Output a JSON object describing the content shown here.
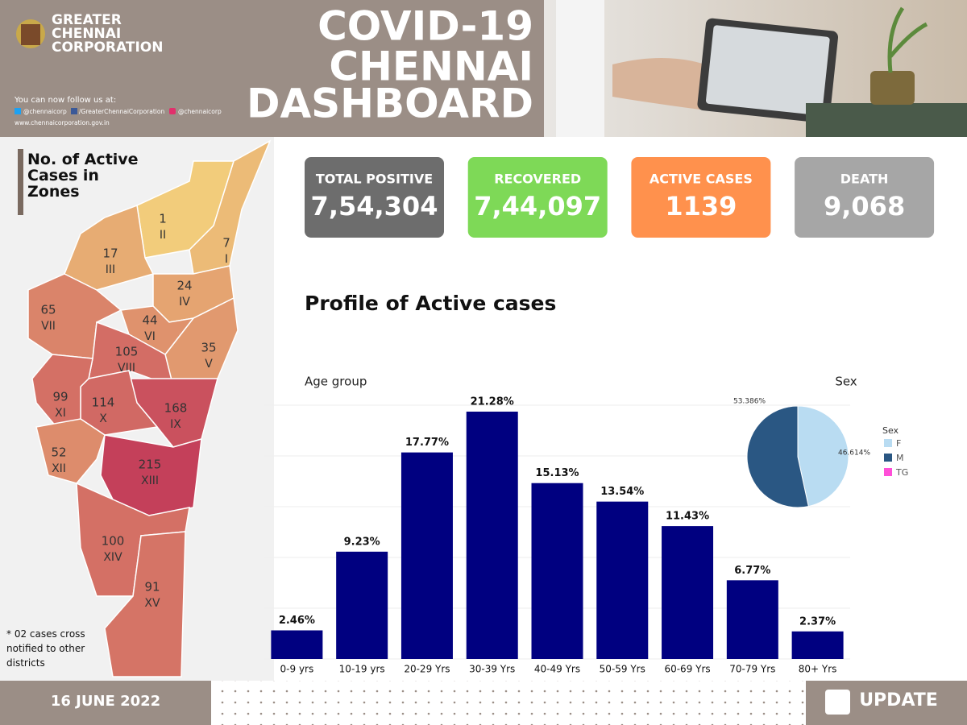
{
  "header": {
    "org": [
      "GREATER",
      "CHENNAI",
      "CORPORATION"
    ],
    "follow": "You can now follow us at:",
    "social": [
      "@chennaicorp",
      "/GreaterChennaiCorporation",
      "@chennaicorp"
    ],
    "website": "www.chennaicorporation.gov.in",
    "title": [
      "COVID-19",
      "CHENNAI",
      "DASHBOARD"
    ]
  },
  "stats": [
    {
      "label": "TOTAL POSITIVE",
      "value": "7,54,304"
    },
    {
      "label": "RECOVERED",
      "value": "7,44,097"
    },
    {
      "label": "ACTIVE CASES",
      "value": "1139"
    },
    {
      "label": "DEATH",
      "value": "9,068"
    }
  ],
  "map": {
    "title": "No. of Active Cases in Zones",
    "note": "* 02  cases cross notified to other districts",
    "zones": [
      {
        "value": 7,
        "numeral": "I"
      },
      {
        "value": 1,
        "numeral": "II"
      },
      {
        "value": 17,
        "numeral": "III"
      },
      {
        "value": 24,
        "numeral": "IV"
      },
      {
        "value": 35,
        "numeral": "V"
      },
      {
        "value": 44,
        "numeral": "VI"
      },
      {
        "value": 65,
        "numeral": "VII"
      },
      {
        "value": 105,
        "numeral": "VIII"
      },
      {
        "value": 168,
        "numeral": "IX"
      },
      {
        "value": 114,
        "numeral": "X"
      },
      {
        "value": 99,
        "numeral": "XI"
      },
      {
        "value": 52,
        "numeral": "XII"
      },
      {
        "value": 215,
        "numeral": "XIII"
      },
      {
        "value": 100,
        "numeral": "XIV"
      },
      {
        "value": 91,
        "numeral": "XV"
      }
    ]
  },
  "section_title": "Profile of Active cases",
  "chart_data": [
    {
      "type": "bar",
      "title": "Age group",
      "color": "#000080",
      "categories": [
        "0-9 yrs",
        "10-19 yrs",
        "20-29 Yrs",
        "30-39 Yrs",
        "40-49 Yrs",
        "50-59 Yrs",
        "60-69 Yrs",
        "70-79 Yrs",
        "80+ Yrs"
      ],
      "values": [
        2.46,
        9.23,
        17.77,
        21.28,
        15.13,
        13.54,
        11.43,
        6.77,
        2.37
      ],
      "value_labels": [
        "2.46%",
        "9.23%",
        "17.77%",
        "21.28%",
        "15.13%",
        "13.54%",
        "11.43%",
        "6.77%",
        "2.37%"
      ]
    },
    {
      "type": "pie",
      "title": "Sex",
      "legend_title": "Sex",
      "categories": [
        "F",
        "M",
        "TG"
      ],
      "colors": [
        "#b9dcf2",
        "#2a5783",
        "#ff4fd8"
      ],
      "values": [
        46.614,
        53.386,
        0
      ],
      "value_labels": [
        "46.614%",
        "53.386%",
        null
      ]
    }
  ],
  "footer": {
    "date": "16 JUNE 2022",
    "update": "UPDATE"
  }
}
